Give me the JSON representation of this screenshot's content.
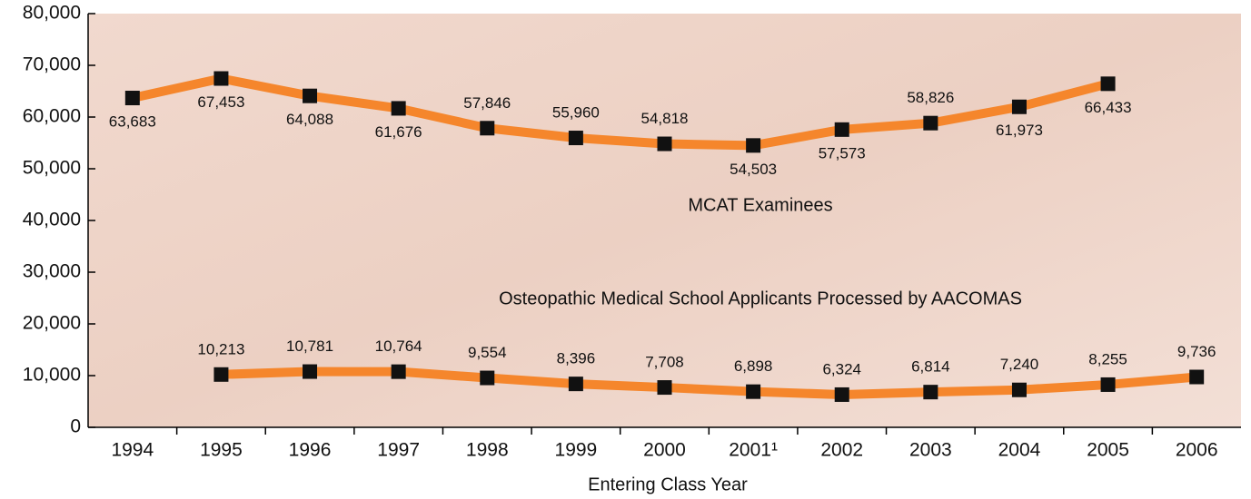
{
  "chart_data": {
    "type": "line",
    "x_label": "Entering Class Year",
    "categories": [
      "1994",
      "1995",
      "1996",
      "1997",
      "1998",
      "1999",
      "2000",
      "2001¹",
      "2002",
      "2003",
      "2004",
      "2005",
      "2006"
    ],
    "series": [
      {
        "name": "MCAT Examinees",
        "color": "#f5862c",
        "values": [
          63683,
          67453,
          64088,
          61676,
          57846,
          55960,
          54818,
          54503,
          57573,
          58826,
          61973,
          66433,
          null
        ],
        "value_labels": [
          "63,683",
          "67,453",
          "64,088",
          "61,676",
          "57,846",
          "55,960",
          "54,818",
          "54,503",
          "57,573",
          "58,826",
          "61,973",
          "66,433",
          null
        ]
      },
      {
        "name": "Osteopathic Medical School Applicants Processed by AACOMAS",
        "color": "#f5862c",
        "values": [
          null,
          10213,
          10781,
          10764,
          9554,
          8396,
          7708,
          6898,
          6324,
          6814,
          7240,
          8255,
          9736
        ],
        "value_labels": [
          null,
          "10,213",
          "10,781",
          "10,764",
          "9,554",
          "8,396",
          "7,708",
          "6,898",
          "6,324",
          "6,814",
          "7,240",
          "8,255",
          "9,736"
        ]
      }
    ],
    "ylim": [
      0,
      80000
    ],
    "yticks": [
      0,
      {
        "value": 10000,
        "label": "10,000"
      },
      {
        "value": 20000,
        "label": "20,000"
      },
      {
        "value": 30000,
        "label": "30,000"
      },
      {
        "value": 40000,
        "label": "40,000"
      },
      {
        "value": 50000,
        "label": "50,000"
      },
      {
        "value": 60000,
        "label": "60,000"
      },
      {
        "value": 70000,
        "label": "70,000"
      },
      {
        "value": 80000,
        "label": "80,000"
      }
    ]
  }
}
